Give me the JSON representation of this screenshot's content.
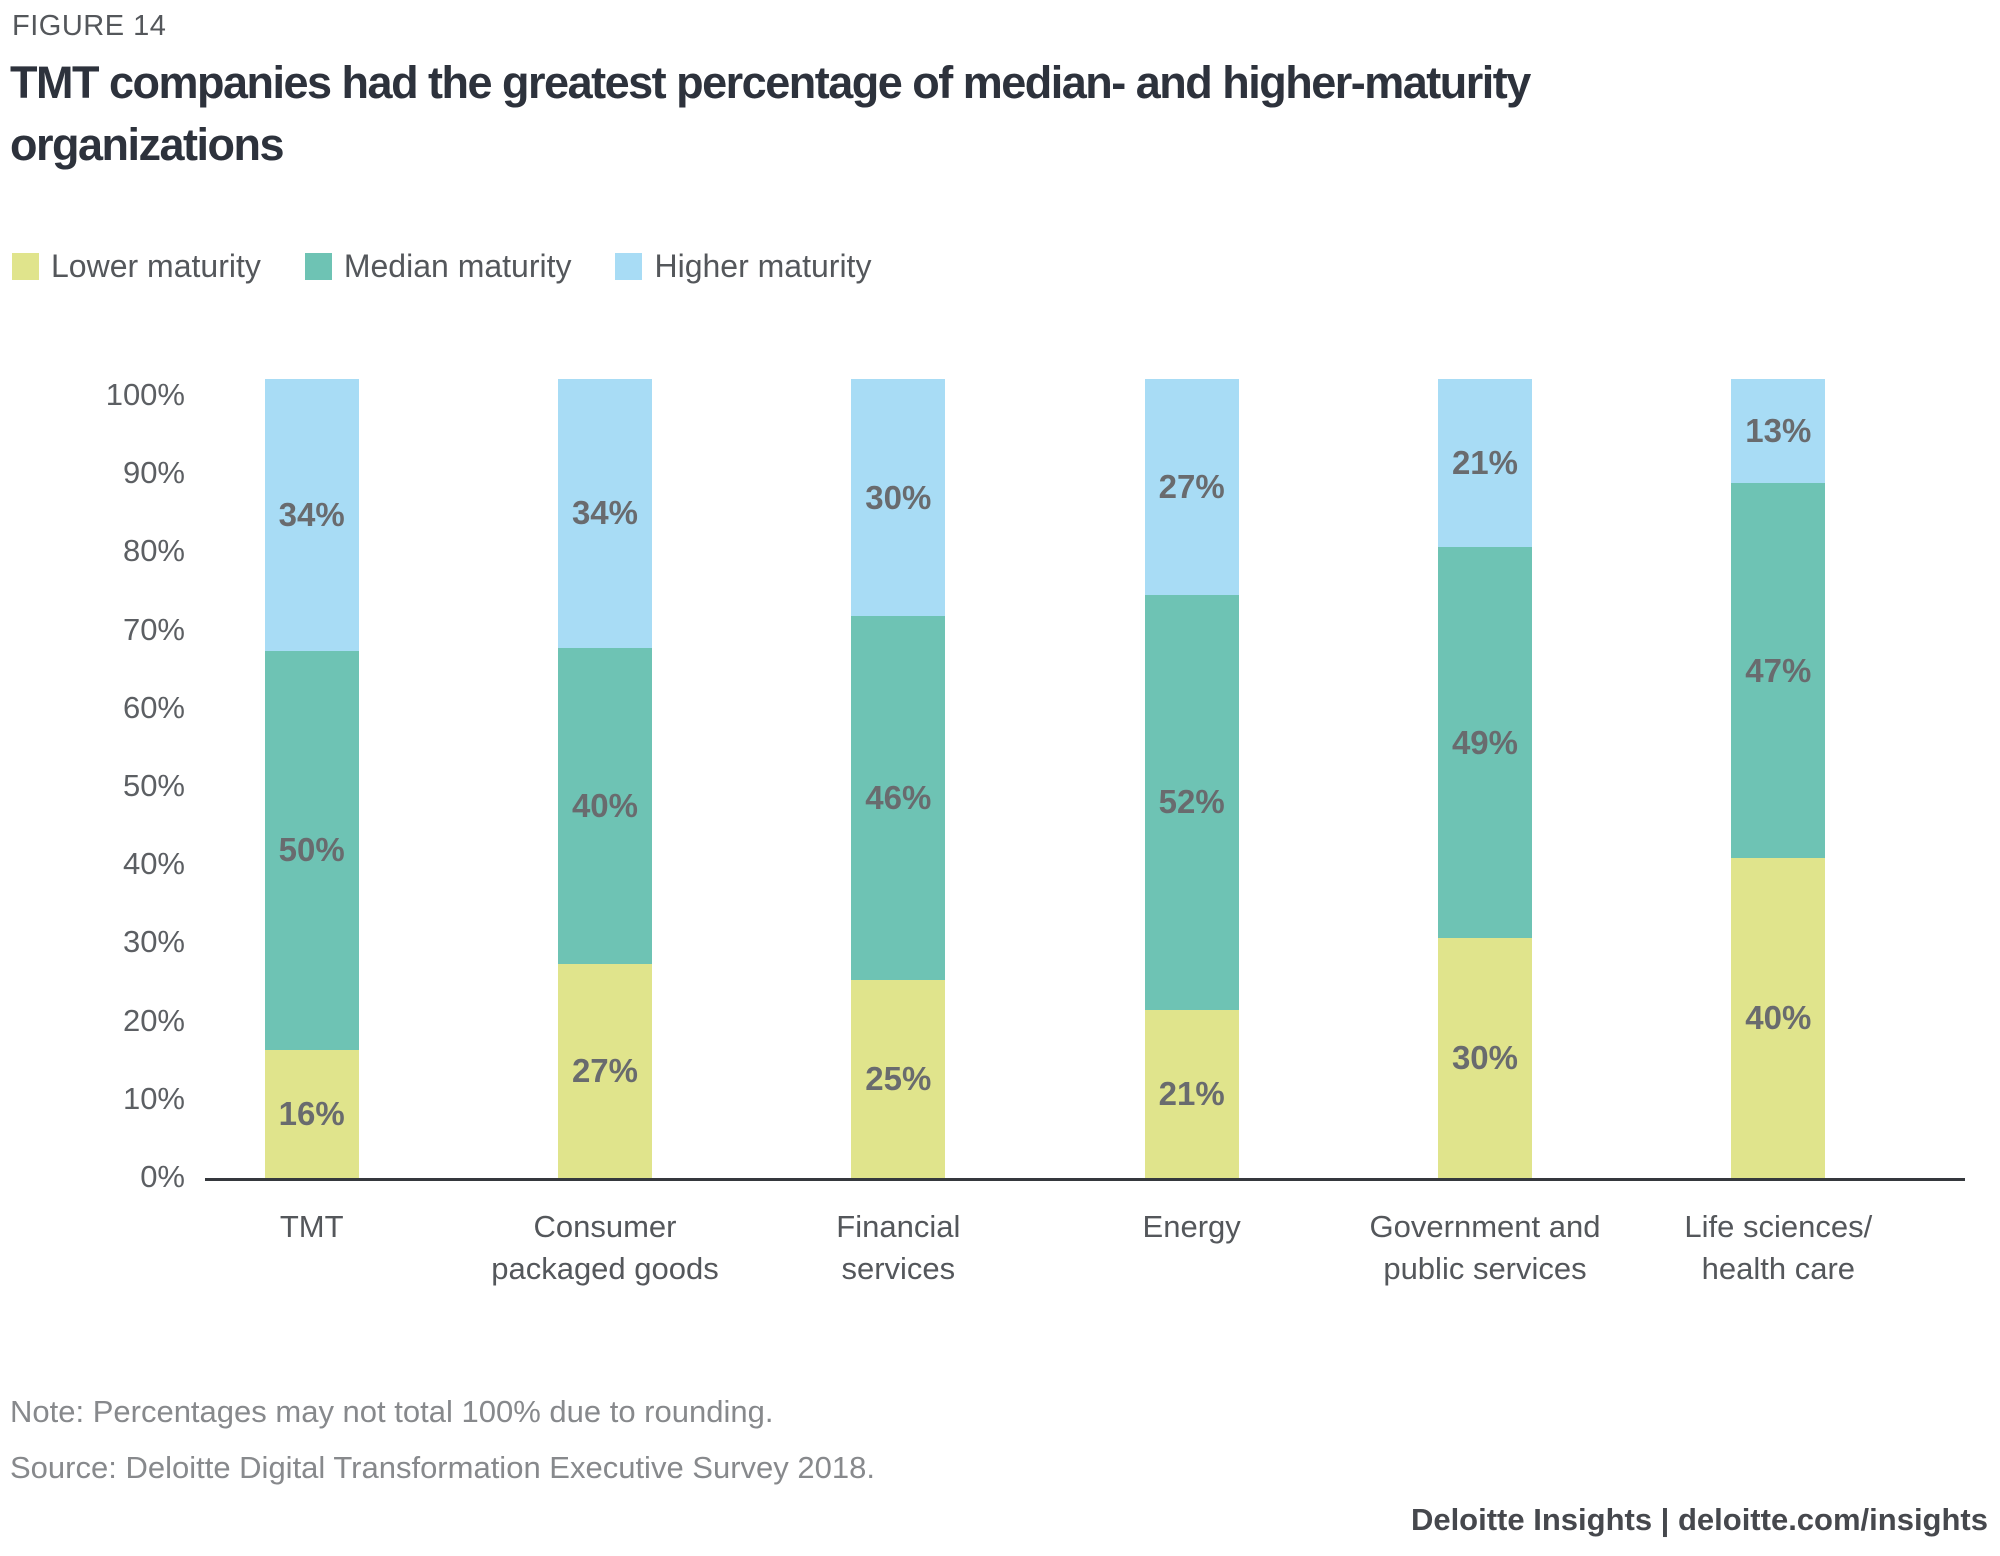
{
  "figure_label": "FIGURE 14",
  "title": "TMT companies had the greatest percentage of median- and higher-maturity\norganizations",
  "legend": [
    {
      "label": "Lower maturity",
      "color": "#E0E48C"
    },
    {
      "label": "Median maturity",
      "color": "#6EC3B4"
    },
    {
      "label": "Higher maturity",
      "color": "#A8DCF5"
    }
  ],
  "chart_data": {
    "type": "bar",
    "stacked": true,
    "percent_stacked": true,
    "title": "TMT companies had the greatest percentage of median- and higher-maturity organizations",
    "categories": [
      "TMT",
      "Consumer\npackaged goods",
      "Financial\nservices",
      "Energy",
      "Government and\npublic services",
      "Life sciences/\nhealth care"
    ],
    "series": [
      {
        "name": "Lower maturity",
        "color": "#E0E48C",
        "values": [
          16,
          27,
          25,
          21,
          30,
          40
        ]
      },
      {
        "name": "Median maturity",
        "color": "#6EC3B4",
        "values": [
          50,
          40,
          46,
          52,
          49,
          47
        ]
      },
      {
        "name": "Higher maturity",
        "color": "#A8DCF5",
        "values": [
          34,
          34,
          30,
          27,
          21,
          13
        ]
      }
    ],
    "data_label_suffix": "%",
    "y_ticks": [
      "0%",
      "10%",
      "20%",
      "30%",
      "40%",
      "50%",
      "60%",
      "70%",
      "80%",
      "90%",
      "100%"
    ],
    "ylim": [
      0,
      100
    ],
    "grid": false,
    "legend_position": "top-left"
  },
  "note": "Note: Percentages may not total 100% due to rounding.",
  "source": "Source: Deloitte Digital Transformation Executive Survey 2018.",
  "footer": "Deloitte Insights | deloitte.com/insights"
}
